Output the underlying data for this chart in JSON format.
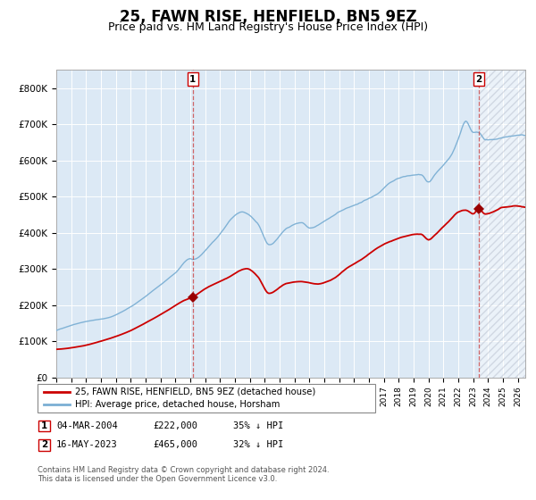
{
  "title": "25, FAWN RISE, HENFIELD, BN5 9EZ",
  "subtitle": "Price paid vs. HM Land Registry's House Price Index (HPI)",
  "title_fontsize": 12,
  "subtitle_fontsize": 9,
  "background_color": "#ffffff",
  "plot_bg_color": "#dce9f5",
  "hatch_color": "#b0b8c8",
  "grid_color": "#ffffff",
  "hpi_color": "#7bafd4",
  "price_color": "#cc0000",
  "dashed_line_color": "#cc4444",
  "marker_color": "#990000",
  "ylim": [
    0,
    850000
  ],
  "yticks": [
    0,
    100000,
    200000,
    300000,
    400000,
    500000,
    600000,
    700000,
    800000
  ],
  "ytick_labels": [
    "£0",
    "£100K",
    "£200K",
    "£300K",
    "£400K",
    "£500K",
    "£600K",
    "£700K",
    "£800K"
  ],
  "legend_label_price": "25, FAWN RISE, HENFIELD, BN5 9EZ (detached house)",
  "legend_label_hpi": "HPI: Average price, detached house, Horsham",
  "transaction1_date": "04-MAR-2004",
  "transaction1_price": "£222,000",
  "transaction1_pct": "35% ↓ HPI",
  "transaction2_date": "16-MAY-2023",
  "transaction2_price": "£465,000",
  "transaction2_pct": "32% ↓ HPI",
  "footnote": "Contains HM Land Registry data © Crown copyright and database right 2024.\nThis data is licensed under the Open Government Licence v3.0.",
  "marker1_year": 2004.17,
  "marker1_price_val": 222000,
  "marker2_year": 2023.37,
  "marker2_price_val": 465000,
  "vline1_year": 2004.17,
  "vline2_year": 2023.37,
  "xmin": 1995.0,
  "xmax": 2026.5
}
